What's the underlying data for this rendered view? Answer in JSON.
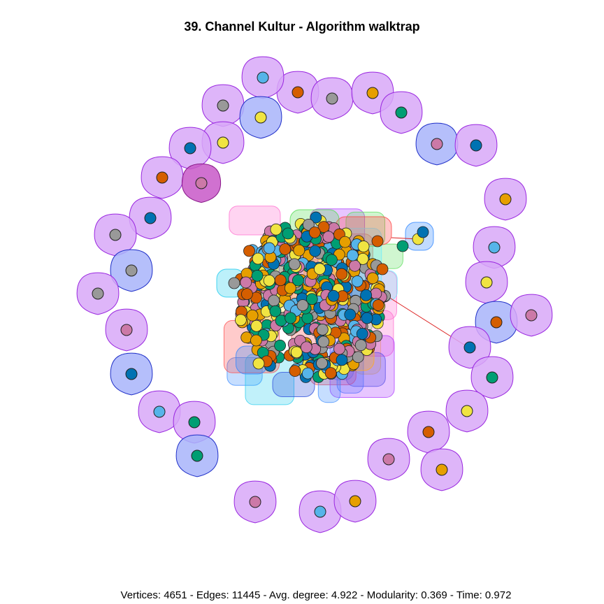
{
  "title": "39. Channel Kultur - Algorithm walktrap",
  "footer": "Vertices: 4651 - Edges: 11445 - Avg. degree: 4.922 - Modularity: 0.369 - Time: 0.972",
  "colors": {
    "node_palette": [
      "#E69F00",
      "#56B4E9",
      "#009E73",
      "#F0E442",
      "#0072B2",
      "#D55E00",
      "#CC79A7",
      "#999999"
    ],
    "hull_purple_fill": "#D8A8F8",
    "hull_purple_stroke": "#9A28E0",
    "hull_blue_fill": "#A8B4FA",
    "hull_blue_stroke": "#2030C8",
    "hull_magenta_fill": "#C858C8",
    "edge": "#DD2222"
  },
  "graph": {
    "vertices": 4651,
    "edges": 11445,
    "avg_degree": 4.922,
    "modularity": 0.369,
    "time": 0.972,
    "peripheral_communities": [
      {
        "node": "#D55E00",
        "hull": "purple"
      },
      {
        "node": "#999999",
        "hull": "purple"
      },
      {
        "node": "#E69F00",
        "hull": "purple"
      },
      {
        "node": "#56B4E9",
        "hull": "purple"
      },
      {
        "node": "#999999",
        "hull": "purple"
      },
      {
        "node": "#F0E442",
        "hull": "blue"
      },
      {
        "node": "#009E73",
        "hull": "purple"
      },
      {
        "node": "#CC79A7",
        "hull": "blue"
      },
      {
        "node": "#0072B2",
        "hull": "purple"
      },
      {
        "node": "#F0E442",
        "hull": "purple"
      },
      {
        "node": "#0072B2",
        "hull": "purple"
      },
      {
        "node": "#D55E00",
        "hull": "purple"
      },
      {
        "node": "#CC79A7",
        "hull": "magenta"
      },
      {
        "node": "#E69F00",
        "hull": "purple"
      },
      {
        "node": "#0072B2",
        "hull": "purple"
      },
      {
        "node": "#56B4E9",
        "hull": "purple"
      },
      {
        "node": "#999999",
        "hull": "purple"
      },
      {
        "node": "#999999",
        "hull": "blue"
      },
      {
        "node": "#F0E442",
        "hull": "purple"
      },
      {
        "node": "#999999",
        "hull": "purple"
      },
      {
        "node": "#D55E00",
        "hull": "blue"
      },
      {
        "node": "#CC79A7",
        "hull": "purple"
      },
      {
        "node": "#CC79A7",
        "hull": "purple"
      },
      {
        "node": "#0072B2",
        "hull": "purple"
      },
      {
        "node": "#009E73",
        "hull": "purple"
      },
      {
        "node": "#0072B2",
        "hull": "blue"
      },
      {
        "node": "#56B4E9",
        "hull": "purple"
      },
      {
        "node": "#009E73",
        "hull": "purple"
      },
      {
        "node": "#F0E442",
        "hull": "purple"
      },
      {
        "node": "#D55E00",
        "hull": "purple"
      },
      {
        "node": "#009E73",
        "hull": "blue"
      },
      {
        "node": "#CC79A7",
        "hull": "purple"
      },
      {
        "node": "#E69F00",
        "hull": "purple"
      },
      {
        "node": "#CC79A7",
        "hull": "purple"
      },
      {
        "node": "#56B4E9",
        "hull": "purple"
      },
      {
        "node": "#E69F00",
        "hull": "purple"
      }
    ]
  }
}
